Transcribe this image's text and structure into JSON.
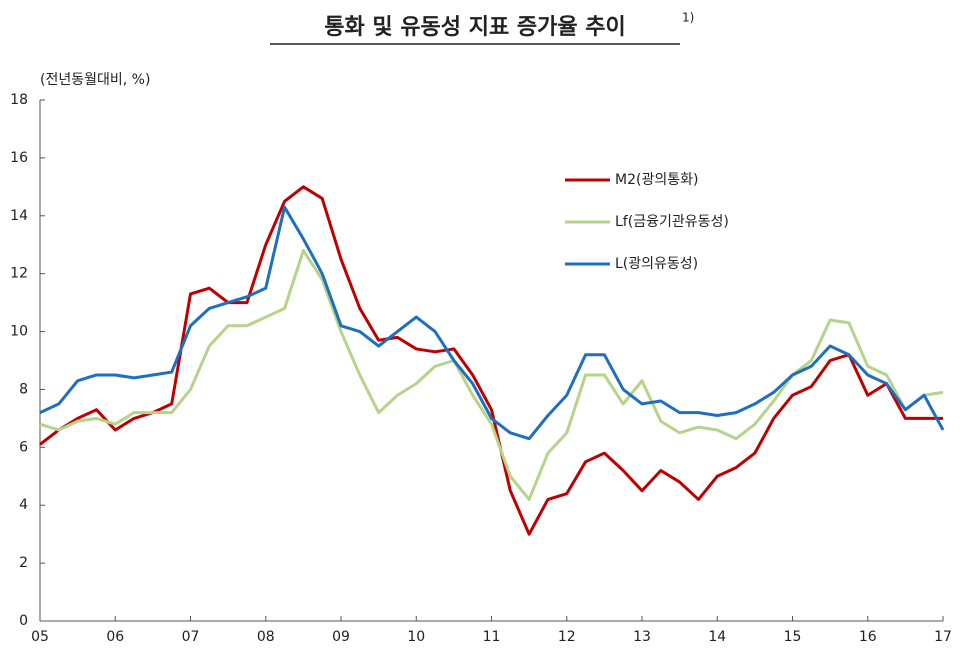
{
  "chart_data": {
    "type": "line",
    "title": "통화 및 유동성 지표 증가율 추이",
    "title_note": "1)",
    "y_label": "(전년동월대비, %)",
    "x": [
      2005,
      2005.25,
      2005.5,
      2005.75,
      2006,
      2006.25,
      2006.5,
      2006.75,
      2007,
      2007.25,
      2007.5,
      2007.75,
      2008,
      2008.25,
      2008.5,
      2008.75,
      2009,
      2009.25,
      2009.5,
      2009.75,
      2010,
      2010.25,
      2010.5,
      2010.75,
      2011,
      2011.25,
      2011.5,
      2011.75,
      2012,
      2012.25,
      2012.5,
      2012.75,
      2013,
      2013.25,
      2013.5,
      2013.75,
      2014,
      2014.25,
      2014.5,
      2014.75,
      2015,
      2015.25,
      2015.5,
      2015.75,
      2016,
      2016.25,
      2016.5,
      2016.75,
      2017
    ],
    "series": [
      {
        "name": "M2(광의통화)",
        "color": "#c00000",
        "values": [
          6.1,
          6.6,
          7.0,
          7.3,
          6.6,
          7.0,
          7.2,
          7.5,
          11.3,
          11.5,
          11.0,
          11.0,
          13.0,
          14.5,
          15.0,
          14.6,
          12.5,
          10.8,
          9.7,
          9.8,
          9.4,
          9.3,
          9.4,
          8.5,
          7.3,
          4.5,
          3.0,
          4.2,
          4.4,
          5.5,
          5.8,
          5.2,
          4.5,
          5.2,
          4.8,
          4.2,
          5.0,
          5.3,
          5.8,
          7.0,
          7.8,
          8.1,
          9.0,
          9.2,
          7.8,
          8.2,
          7.0,
          7.0,
          7.0
        ]
      },
      {
        "name": "Lf(금융기관유동성)",
        "color": "#b5d48a",
        "values": [
          6.8,
          6.6,
          6.9,
          7.0,
          6.8,
          7.2,
          7.2,
          7.2,
          8.0,
          9.5,
          10.2,
          10.2,
          10.5,
          10.8,
          12.8,
          11.8,
          10.0,
          8.5,
          7.2,
          7.8,
          8.2,
          8.8,
          9.0,
          7.8,
          6.8,
          5.0,
          4.2,
          5.8,
          6.5,
          8.5,
          8.5,
          7.5,
          8.3,
          6.9,
          6.5,
          6.7,
          6.6,
          6.3,
          6.8,
          7.6,
          8.5,
          9.0,
          10.4,
          10.3,
          8.8,
          8.5,
          7.3,
          7.8,
          7.9
        ]
      },
      {
        "name": "L(광의유동성)",
        "color": "#1f6fbf",
        "values": [
          7.2,
          7.5,
          8.3,
          8.5,
          8.5,
          8.4,
          8.5,
          8.6,
          10.2,
          10.8,
          11.0,
          11.2,
          11.5,
          14.3,
          13.2,
          12.0,
          10.2,
          10.0,
          9.5,
          10.0,
          10.5,
          10.0,
          9.0,
          8.2,
          7.0,
          6.5,
          6.3,
          7.1,
          7.8,
          9.2,
          9.2,
          8.0,
          7.5,
          7.6,
          7.2,
          7.2,
          7.1,
          7.2,
          7.5,
          7.9,
          8.5,
          8.8,
          9.5,
          9.2,
          8.5,
          8.2,
          7.3,
          7.8,
          6.6
        ]
      }
    ],
    "xlim": [
      2005,
      2017
    ],
    "xticks": [
      {
        "value": 2005,
        "label": "05"
      },
      {
        "value": 2006,
        "label": "06"
      },
      {
        "value": 2007,
        "label": "07"
      },
      {
        "value": 2008,
        "label": "08"
      },
      {
        "value": 2009,
        "label": "09"
      },
      {
        "value": 2010,
        "label": "10"
      },
      {
        "value": 2011,
        "label": "11"
      },
      {
        "value": 2012,
        "label": "12"
      },
      {
        "value": 2013,
        "label": "13"
      },
      {
        "value": 2014,
        "label": "14"
      },
      {
        "value": 2015,
        "label": "15"
      },
      {
        "value": 2016,
        "label": "16"
      },
      {
        "value": 2017,
        "label": "17"
      }
    ],
    "ylim": [
      0,
      18
    ],
    "yticks": [
      0,
      2,
      4,
      6,
      8,
      10,
      12,
      14,
      16,
      18
    ],
    "grid": false,
    "legend": "upper right"
  }
}
